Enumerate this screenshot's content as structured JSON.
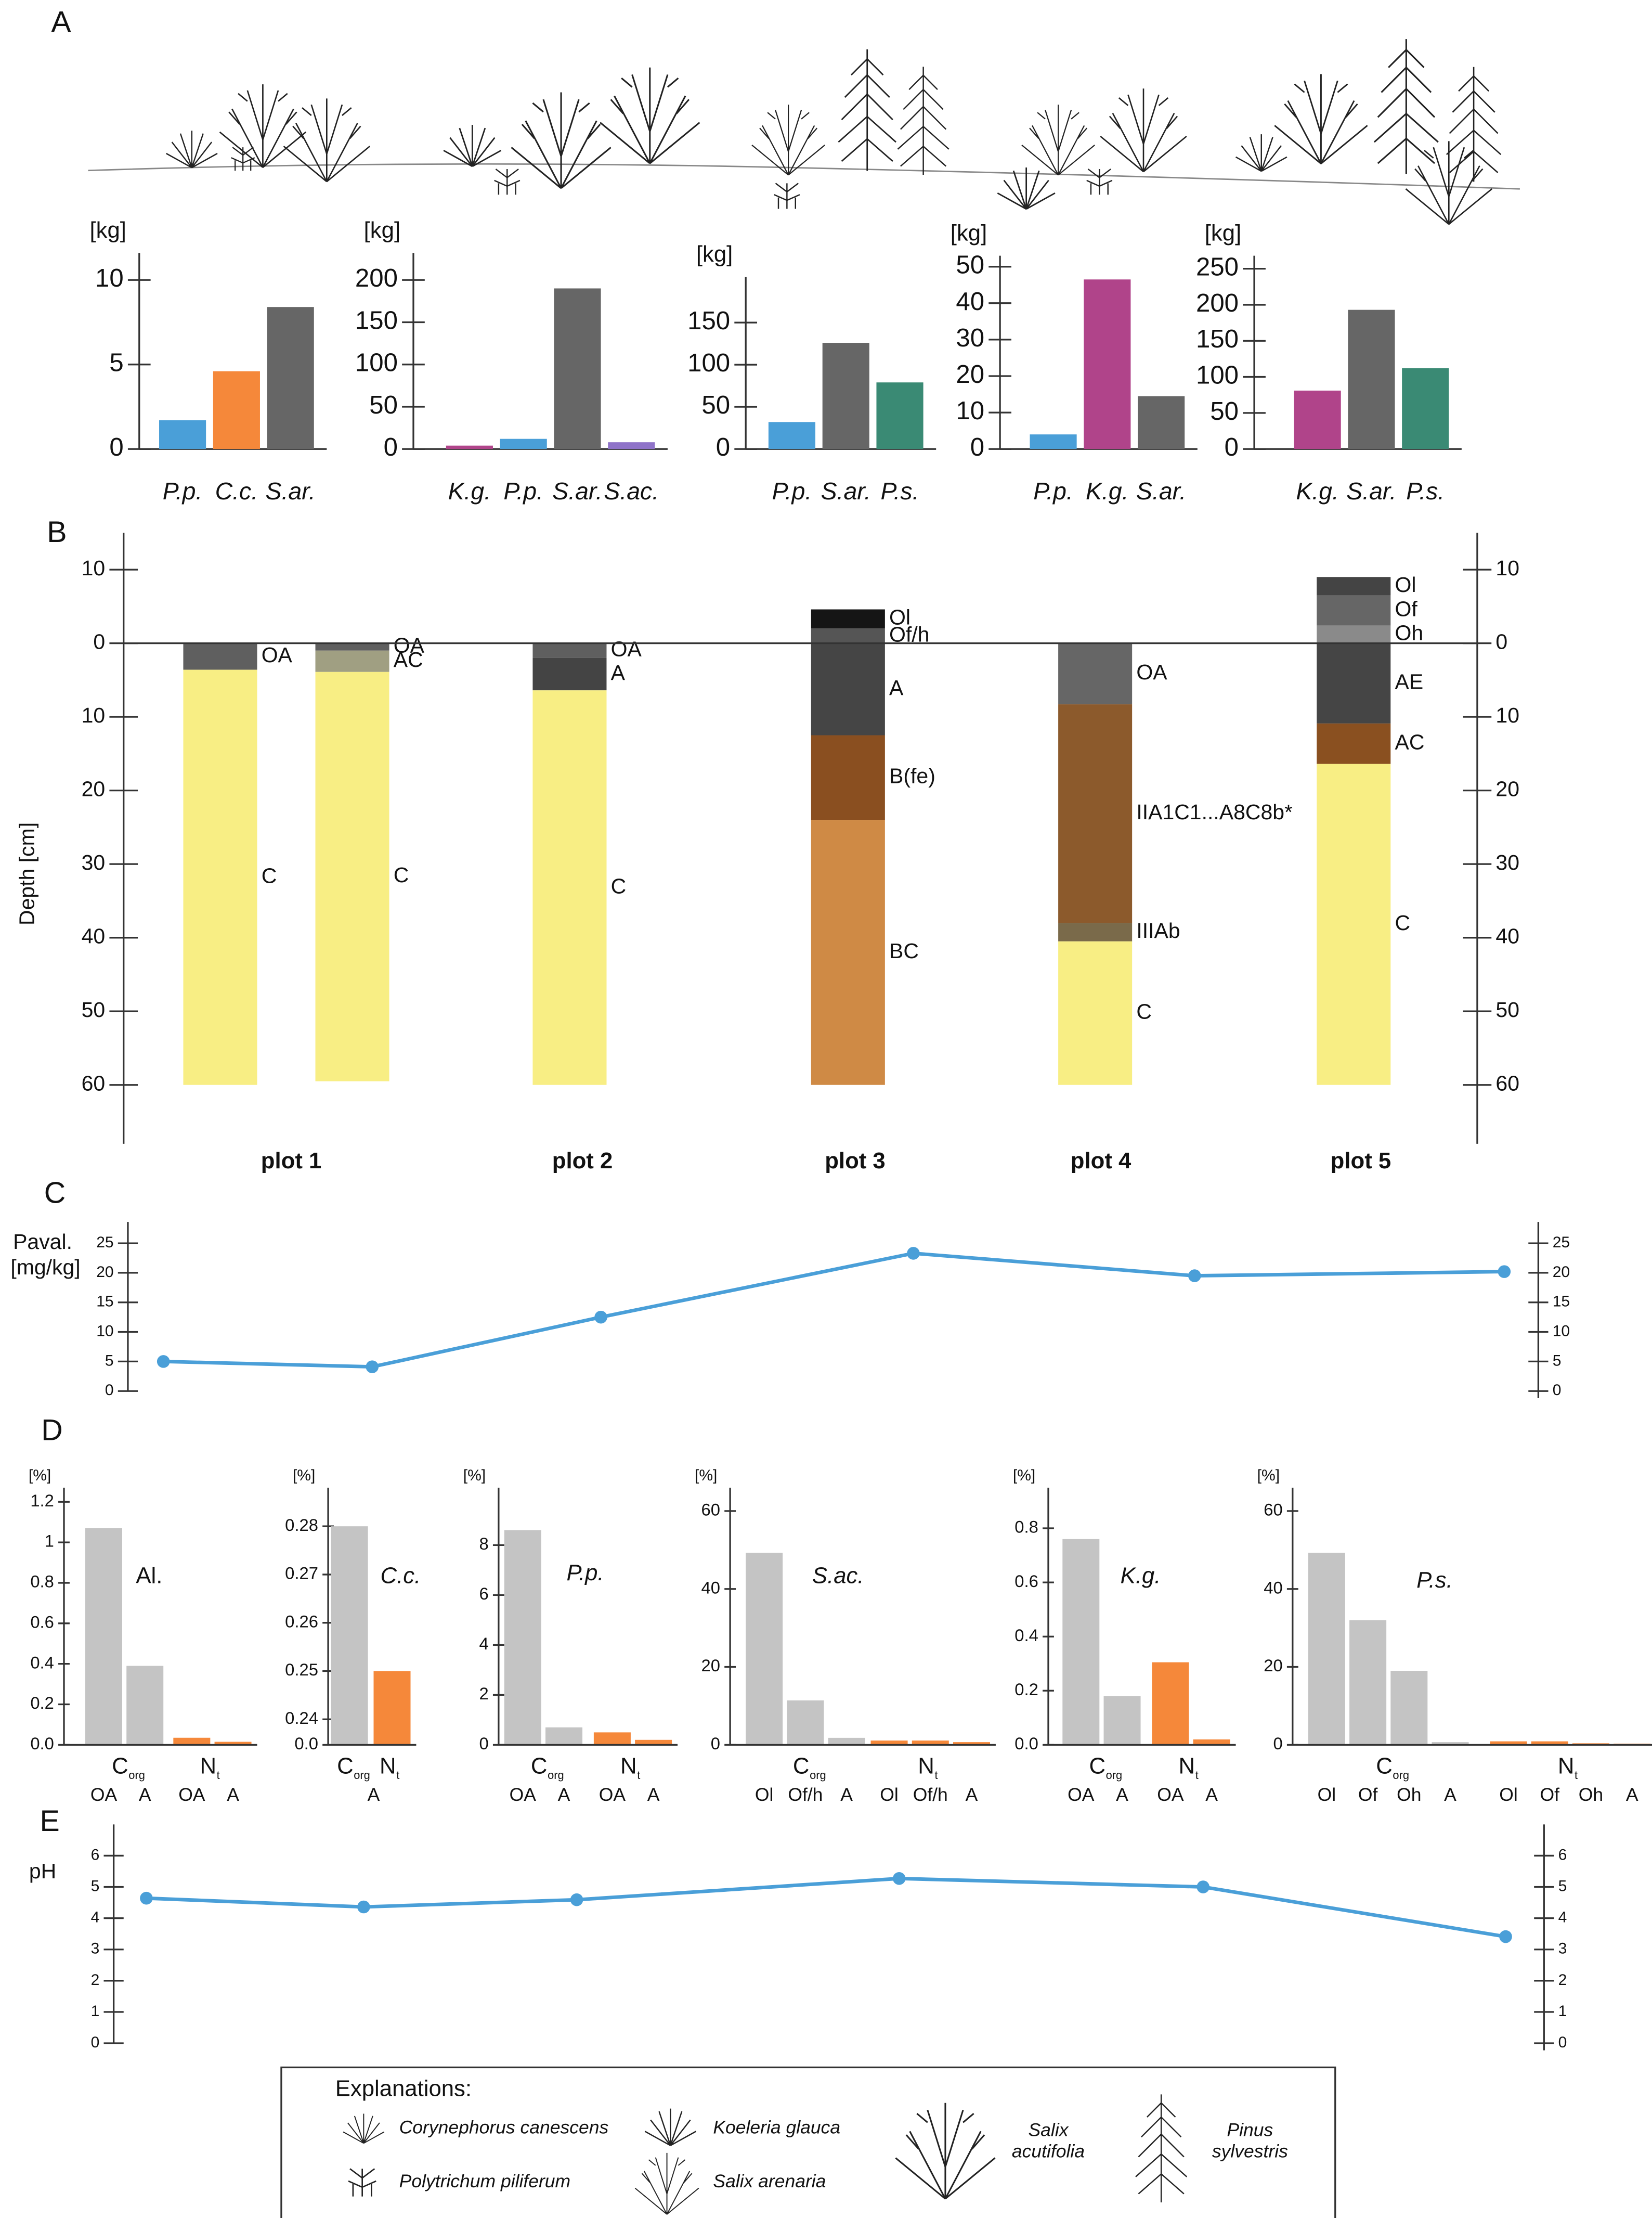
{
  "panel_labels": [
    "A",
    "B",
    "C",
    "D",
    "E"
  ],
  "chart_data": [
    {
      "type": "bar",
      "ylabel": "[kg]",
      "ylim": [
        0,
        11.6
      ],
      "yticks": [
        0,
        5,
        10
      ],
      "categories": [
        "P.p.",
        "C.c.",
        "S.ar."
      ],
      "values": [
        1.7,
        4.6,
        8.4
      ],
      "colors": [
        "#4a9fd8",
        "#f5883a",
        "#666666"
      ]
    },
    {
      "type": "bar",
      "ylabel": "[kg]",
      "ylim": [
        0,
        232
      ],
      "yticks": [
        0,
        50,
        100,
        150,
        200
      ],
      "categories": [
        "K.g.",
        "P.p.",
        "S.ar.",
        "S.ac."
      ],
      "values": [
        4,
        12,
        190,
        8
      ],
      "colors": [
        "#b0448a",
        "#4a9fd8",
        "#666666",
        "#8f73c9"
      ]
    },
    {
      "type": "bar",
      "ylabel": "[kg]",
      "ylim": [
        0,
        204
      ],
      "yticks": [
        0,
        50,
        100,
        150
      ],
      "categories": [
        "P.p.",
        "S.ar.",
        "P.s."
      ],
      "values": [
        32,
        126,
        79
      ],
      "colors": [
        "#4a9fd8",
        "#666666",
        "#3a8a74"
      ]
    },
    {
      "type": "bar",
      "ylabel": "[kg]",
      "ylim": [
        0,
        53
      ],
      "yticks": [
        0,
        10,
        20,
        30,
        40,
        50
      ],
      "categories": [
        "P.p.",
        "K.g.",
        "S.ar."
      ],
      "values": [
        4,
        46.5,
        14.5
      ],
      "colors": [
        "#4a9fd8",
        "#b0448a",
        "#666666"
      ]
    },
    {
      "type": "bar",
      "ylabel": "[kg]",
      "ylim": [
        0,
        268
      ],
      "yticks": [
        0,
        50,
        100,
        150,
        200,
        250
      ],
      "categories": [
        "K.g.",
        "S.ar.",
        "P.s."
      ],
      "values": [
        81,
        193,
        112
      ],
      "colors": [
        "#b0448a",
        "#666666",
        "#3a8a74"
      ]
    },
    {
      "type": "profile",
      "ylabel": "Depth [cm]",
      "ylim": [
        -15,
        68
      ],
      "yticks": [
        {
          "value": -10,
          "label": "10"
        },
        0,
        10,
        20,
        30,
        40,
        50,
        60
      ],
      "plots": [
        {
          "name": "plot 1",
          "columns": [
            {
              "horizons": [
                {
                  "name": "OA",
                  "top": 0,
                  "bottom": 3.6,
                  "color": "#5f5f5f"
                },
                {
                  "name": "C",
                  "top": 3.6,
                  "bottom": 60,
                  "color": "#f8ee84"
                }
              ]
            },
            {
              "horizons": [
                {
                  "name": "OA",
                  "top": 0,
                  "bottom": 1,
                  "color": "#5f5f5f"
                },
                {
                  "name": "AC",
                  "top": 1,
                  "bottom": 3.9,
                  "color": "#a09f82"
                },
                {
                  "name": "C",
                  "top": 3.9,
                  "bottom": 59.5,
                  "color": "#f8ee84"
                }
              ]
            }
          ]
        },
        {
          "name": "plot 2",
          "columns": [
            {
              "horizons": [
                {
                  "name": "OA",
                  "top": 0,
                  "bottom": 2,
                  "color": "#5f5f5f"
                },
                {
                  "name": "A",
                  "top": 2,
                  "bottom": 6.4,
                  "color": "#444444"
                },
                {
                  "name": "C",
                  "top": 6.4,
                  "bottom": 60,
                  "color": "#f8ee84"
                }
              ]
            }
          ]
        },
        {
          "name": "plot 3",
          "columns": [
            {
              "horizons": [
                {
                  "name": "Ol",
                  "top": -4.6,
                  "bottom": -2,
                  "color": "#151515"
                },
                {
                  "name": "Of/h",
                  "top": -2,
                  "bottom": 0,
                  "color": "#555555"
                },
                {
                  "name": "A",
                  "top": 0,
                  "bottom": 12.5,
                  "color": "#454545"
                },
                {
                  "name": "B(fe)",
                  "top": 12.5,
                  "bottom": 24,
                  "color": "#8a4f20"
                },
                {
                  "name": "BC",
                  "top": 24,
                  "bottom": 60,
                  "color": "#cf8a45"
                }
              ]
            }
          ]
        },
        {
          "name": "plot 4",
          "columns": [
            {
              "horizons": [
                {
                  "name": "OA",
                  "top": 0,
                  "bottom": 8.3,
                  "color": "#666666"
                },
                {
                  "name": "IIA1C1...A8C8b*",
                  "top": 8.3,
                  "bottom": 38,
                  "color": "#8c5a2c"
                },
                {
                  "name": "IIIAb",
                  "top": 38,
                  "bottom": 40.5,
                  "color": "#7a6a4a"
                },
                {
                  "name": "C",
                  "top": 40.5,
                  "bottom": 60,
                  "color": "#f8ee84"
                }
              ]
            }
          ]
        },
        {
          "name": "plot 5",
          "columns": [
            {
              "horizons": [
                {
                  "name": "Ol",
                  "top": -9,
                  "bottom": -6.5,
                  "color": "#444444"
                },
                {
                  "name": "Of",
                  "top": -6.5,
                  "bottom": -2.4,
                  "color": "#666666"
                },
                {
                  "name": "Oh",
                  "top": -2.4,
                  "bottom": 0,
                  "color": "#8a8a8a"
                },
                {
                  "name": "AE",
                  "top": 0,
                  "bottom": 10.9,
                  "color": "#454545"
                },
                {
                  "name": "AC",
                  "top": 10.9,
                  "bottom": 16.4,
                  "color": "#8a5020"
                },
                {
                  "name": "C",
                  "top": 16.4,
                  "bottom": 60,
                  "color": "#f8ee84"
                }
              ]
            }
          ]
        }
      ]
    },
    {
      "type": "line",
      "ylabel": [
        "Paval.",
        "[mg/kg]"
      ],
      "ylim": [
        0,
        28.6
      ],
      "yticks": [
        0,
        5,
        10,
        15,
        20,
        25
      ],
      "categories": [
        null,
        null,
        null,
        null,
        null,
        null
      ],
      "values": [
        5.0,
        4.1,
        12.5,
        23.3,
        19.5,
        20.2
      ],
      "color": "#4a9fd8"
    },
    {
      "type": "groupbar",
      "ylabel": "[%]",
      "label": "Al.",
      "label_style": "normal",
      "ylim": [
        0,
        1.27
      ],
      "yticks": [
        {
          "value": 0,
          "label": "0.0"
        },
        0.2,
        0.4,
        0.6,
        0.8,
        1,
        1.2
      ],
      "series": [
        {
          "name": "C",
          "subscript": "org",
          "color": "#c4c4c4",
          "categories": [
            "OA",
            "A"
          ],
          "values": [
            1.07,
            0.39
          ]
        },
        {
          "name": "N",
          "subscript": "t",
          "color": "#f5883a",
          "categories": [
            "OA",
            "A"
          ],
          "values": [
            0.035,
            0.015
          ]
        }
      ]
    },
    {
      "type": "groupbar",
      "ylabel": "[%]",
      "label": "C.c.",
      "label_style": "italic",
      "ylim": [
        0,
        0.288
      ],
      "axis_break": [
        0,
        0.24
      ],
      "yticks": [
        {
          "value": 0,
          "label": "0.0"
        },
        0.24,
        0.25,
        0.26,
        0.27,
        0.28
      ],
      "categories": [
        "A"
      ],
      "series": [
        {
          "name": "C",
          "subscript": "org",
          "color": "#c4c4c4",
          "values": [
            0.28
          ]
        },
        {
          "name": "N",
          "subscript": "t",
          "color": "#f5883a",
          "values": [
            0.25
          ]
        }
      ]
    },
    {
      "type": "groupbar",
      "ylabel": "[%]",
      "label": "P.p.",
      "label_style": "italic",
      "ylim": [
        0,
        10.3
      ],
      "yticks": [
        0,
        2,
        4,
        6,
        8
      ],
      "series": [
        {
          "name": "C",
          "subscript": "org",
          "color": "#c4c4c4",
          "categories": [
            "OA",
            "A"
          ],
          "values": [
            8.6,
            0.7
          ]
        },
        {
          "name": "N",
          "subscript": "t",
          "color": "#f5883a",
          "categories": [
            "OA",
            "A"
          ],
          "values": [
            0.5,
            0.2
          ]
        }
      ]
    },
    {
      "type": "groupbar",
      "ylabel": "[%]",
      "label": "S.ac.",
      "label_style": "italic",
      "ylim": [
        0,
        66
      ],
      "yticks": [
        0,
        20,
        40,
        60
      ],
      "series": [
        {
          "name": "C",
          "subscript": "org",
          "color": "#c4c4c4",
          "categories": [
            "Ol",
            "Of/h",
            "A"
          ],
          "values": [
            49.3,
            11.4,
            1.8
          ]
        },
        {
          "name": "N",
          "subscript": "t",
          "color": "#f5883a",
          "categories": [
            "Ol",
            "Of/h",
            "A"
          ],
          "values": [
            1.1,
            1.1,
            0.7
          ]
        }
      ]
    },
    {
      "type": "groupbar",
      "ylabel": "[%]",
      "label": "K.g.",
      "label_style": "italic",
      "ylim": [
        0,
        0.95
      ],
      "yticks": [
        {
          "value": 0,
          "label": "0.0"
        },
        0.2,
        0.4,
        0.6,
        0.8
      ],
      "series": [
        {
          "name": "C",
          "subscript": "org",
          "color": "#c4c4c4",
          "categories": [
            "OA",
            "A"
          ],
          "values": [
            0.76,
            0.18
          ]
        },
        {
          "name": "N",
          "subscript": "t",
          "color": "#f5883a",
          "categories": [
            "OA",
            "A"
          ],
          "values": [
            0.305,
            0.02
          ]
        }
      ]
    },
    {
      "type": "groupbar",
      "ylabel": "[%]",
      "label": "P.s.",
      "label_style": "italic",
      "ylim": [
        0,
        66
      ],
      "yticks": [
        0,
        20,
        40,
        60
      ],
      "series": [
        {
          "name": "C",
          "subscript": "org",
          "color": "#c4c4c4",
          "categories": [
            "Ol",
            "Of",
            "Oh",
            "A"
          ],
          "values": [
            49.3,
            32,
            19,
            0.7
          ]
        },
        {
          "name": "N",
          "subscript": "t",
          "color": "#f5883a",
          "categories": [
            "Ol",
            "Of",
            "Oh",
            "A"
          ],
          "values": [
            0.9,
            0.9,
            0.4,
            0.3
          ]
        }
      ]
    },
    {
      "type": "line",
      "ylabel": [
        "pH"
      ],
      "ylim": [
        0,
        7
      ],
      "yticks": [
        0,
        1,
        2,
        3,
        4,
        5,
        6
      ],
      "categories": [
        null,
        null,
        null,
        null,
        null,
        null
      ],
      "values": [
        4.64,
        4.36,
        4.59,
        5.27,
        5.0,
        3.41
      ],
      "color": "#4a9fd8"
    }
  ],
  "explanations": {
    "title": "Explanations:",
    "items": [
      [
        "Corynephorus canescens"
      ],
      [
        "Koeleria glauca"
      ],
      [
        "Polytrichum piliferum"
      ],
      [
        "Salix arenaria"
      ],
      [
        "Salix",
        "acutifolia"
      ],
      [
        "Pinus",
        "sylvestris"
      ]
    ]
  }
}
